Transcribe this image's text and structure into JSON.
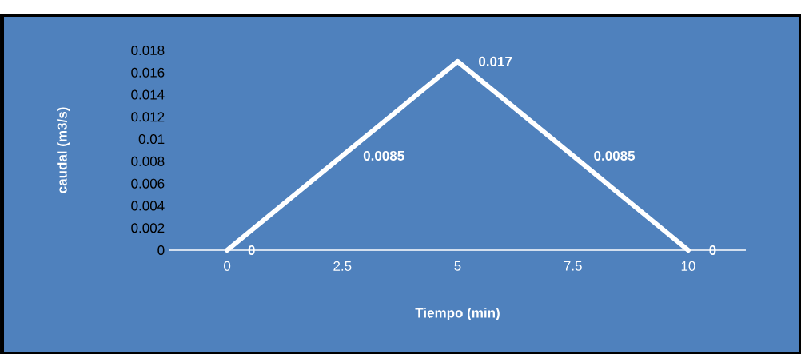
{
  "chart_data": {
    "type": "line",
    "xlabel": "Tiempo (min)",
    "ylabel": "caudal (m3/s)",
    "categories": [
      "0",
      "2.5",
      "5",
      "7.5",
      "10"
    ],
    "series": [
      {
        "color": "#ffffff",
        "values": [
          0,
          0.0085,
          0.017,
          0.0085,
          0
        ]
      }
    ],
    "ylim": [
      0,
      0.018
    ],
    "yticks": [
      0,
      0.002,
      0.004,
      0.006,
      0.008,
      0.01,
      0.012,
      0.014,
      0.016,
      0.018
    ],
    "data_labels": true,
    "line_style": "solid"
  }
}
